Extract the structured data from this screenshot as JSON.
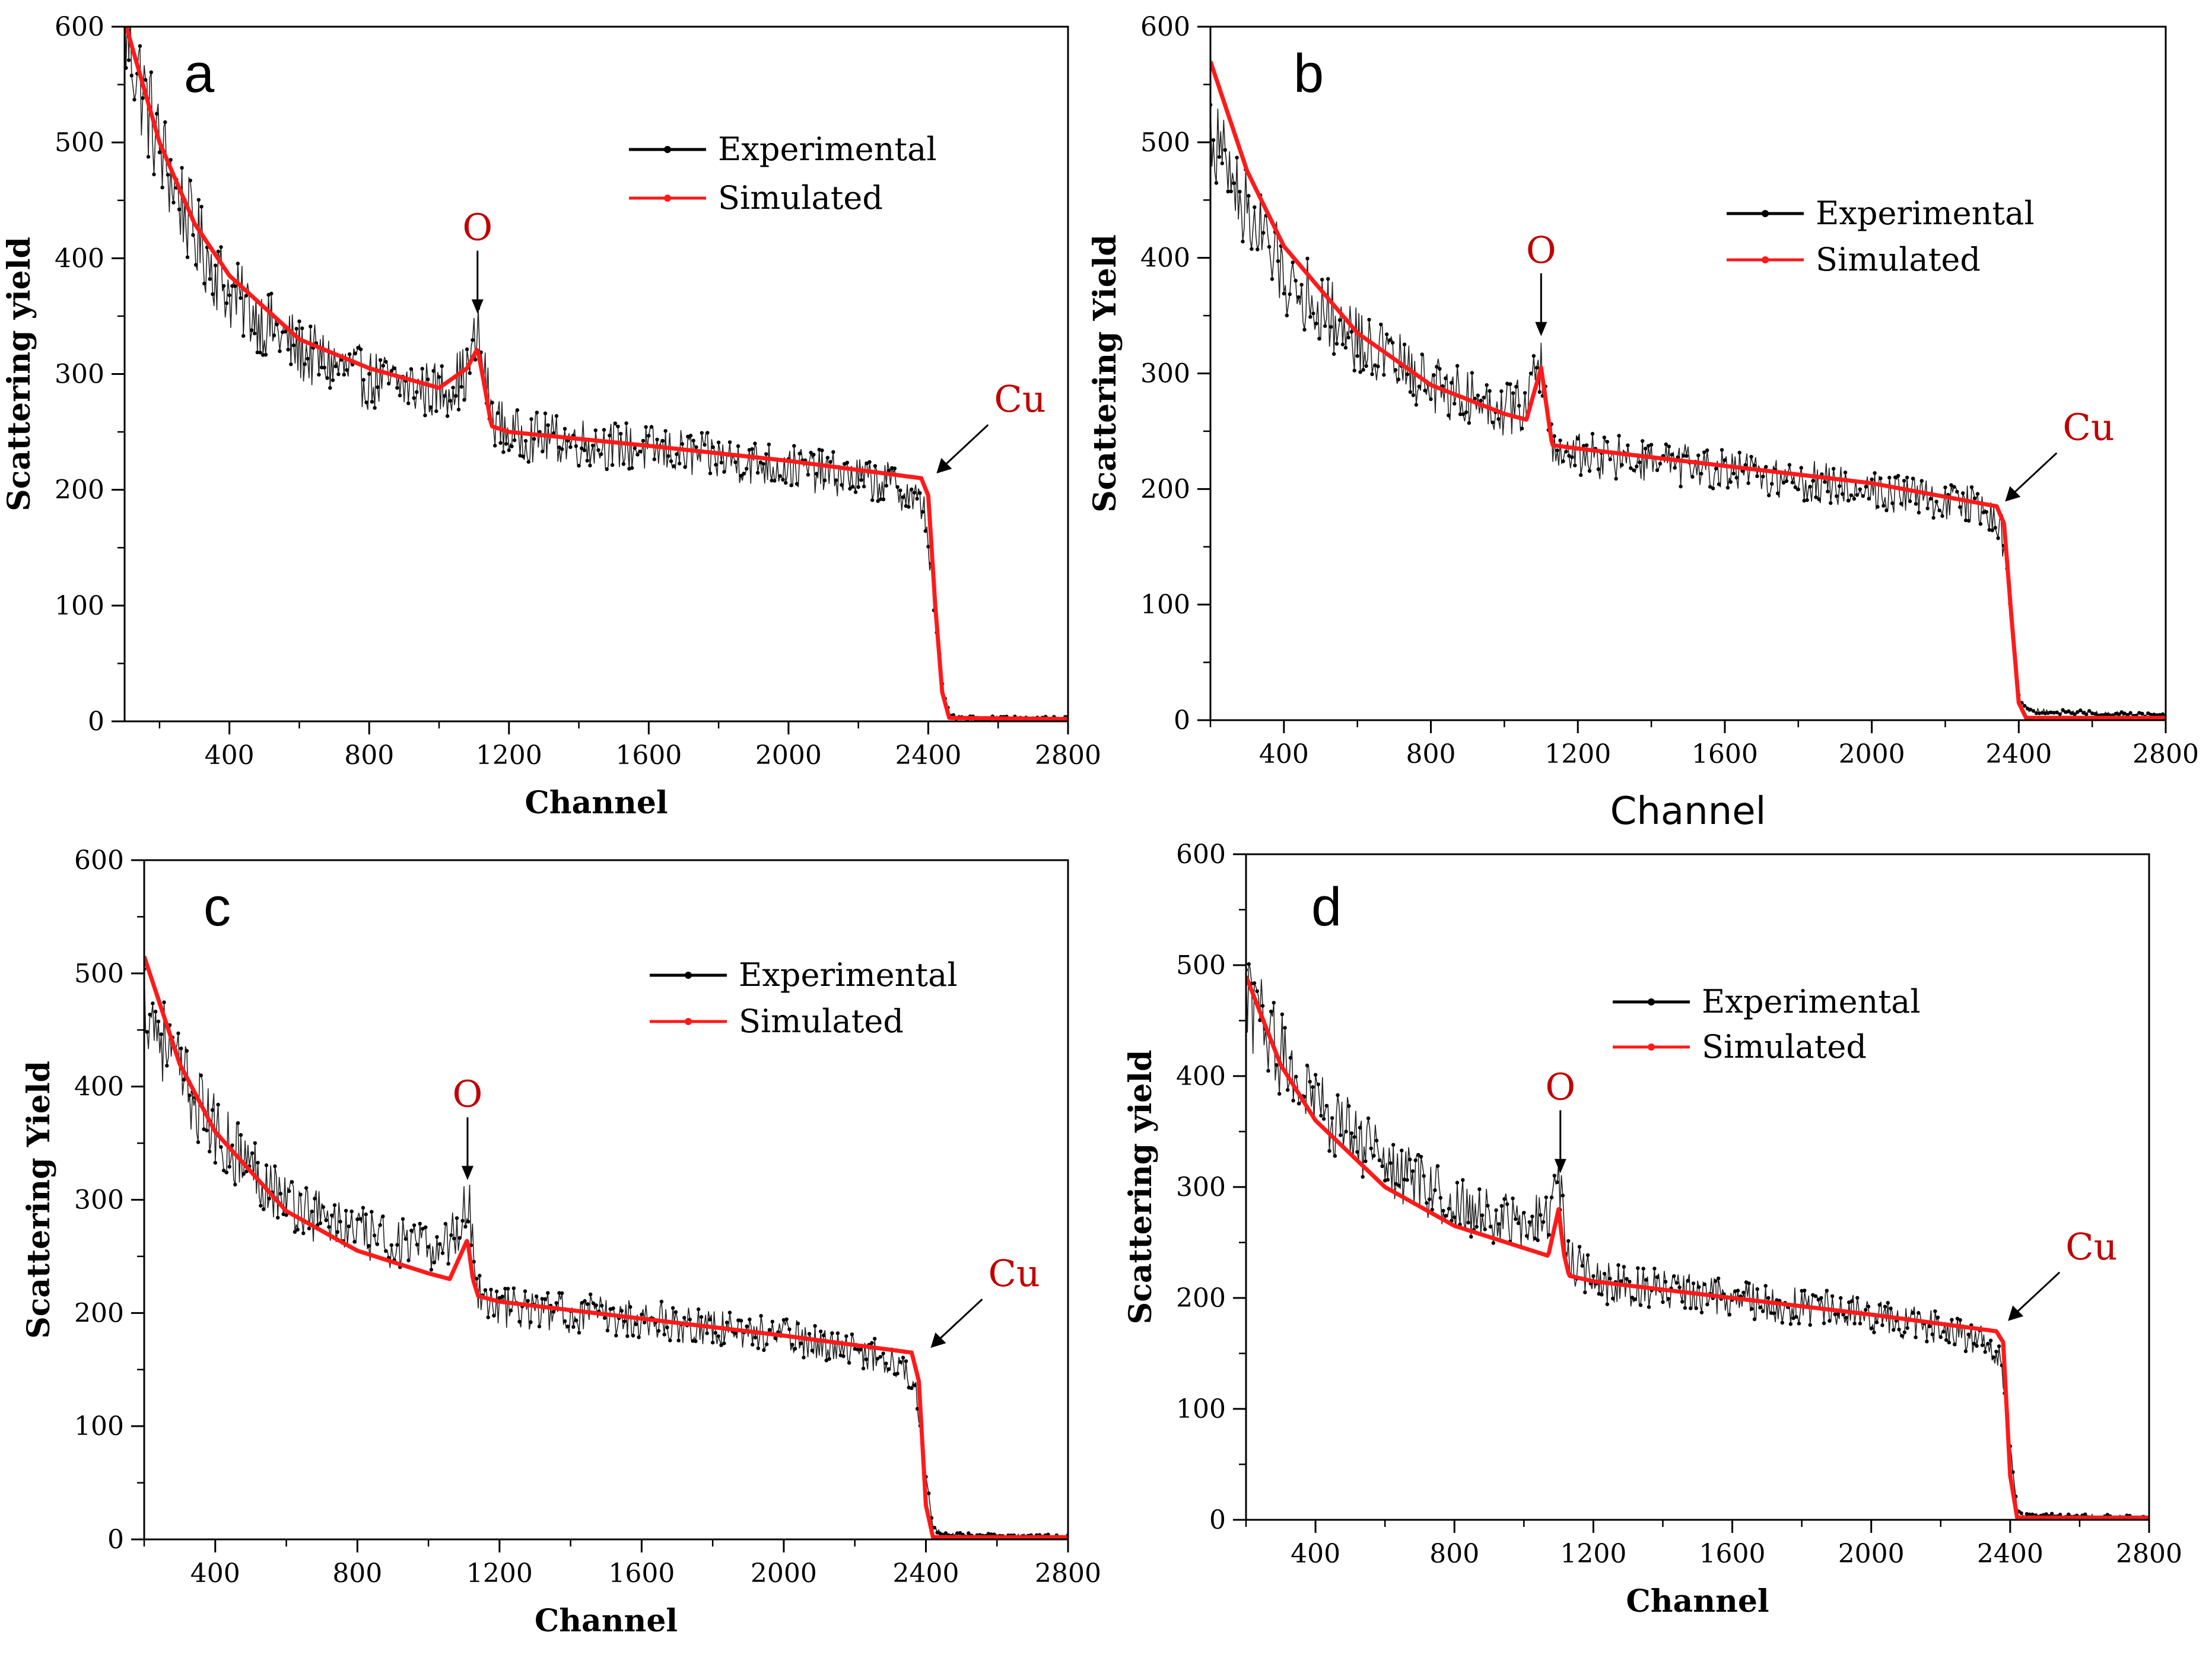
{
  "colors": {
    "experimental": "#000000",
    "simulated": "#ff1a1a",
    "annotation_text": "#c00000",
    "axes": "#000000"
  },
  "chart_data": [
    {
      "type": "scatter",
      "panel": "a",
      "xlabel": "Channel",
      "ylabel": "Scattering yield",
      "xlim": [
        100,
        2800
      ],
      "ylim": [
        0,
        600
      ],
      "xticks": [
        400,
        800,
        1200,
        1600,
        2000,
        2400,
        2800
      ],
      "yticks": [
        0,
        100,
        200,
        300,
        400,
        500,
        600
      ],
      "legend": {
        "placement": "upper-right",
        "entries": [
          "Experimental",
          "Simulated"
        ]
      },
      "annotations": [
        {
          "text": "O",
          "x": 1110,
          "y": 345
        },
        {
          "text": "Cu",
          "x": 2410,
          "y": 210
        }
      ],
      "series": [
        {
          "name": "Experimental",
          "x": [
            100,
            200,
            300,
            400,
            600,
            800,
            1000,
            1080,
            1110,
            1150,
            1200,
            1600,
            2000,
            2300,
            2390,
            2410,
            2440,
            2460,
            2500,
            2800
          ],
          "y": [
            600,
            495,
            420,
            370,
            320,
            295,
            285,
            300,
            335,
            265,
            248,
            235,
            220,
            205,
            185,
            120,
            30,
            5,
            3,
            2
          ]
        },
        {
          "name": "Simulated",
          "x": [
            100,
            200,
            300,
            400,
            600,
            800,
            1000,
            1080,
            1110,
            1130,
            1150,
            1200,
            1600,
            2000,
            2380,
            2400,
            2420,
            2440,
            2460,
            2800
          ],
          "y": [
            605,
            500,
            430,
            385,
            330,
            305,
            288,
            305,
            322,
            290,
            255,
            250,
            238,
            225,
            210,
            195,
            100,
            25,
            3,
            2
          ]
        }
      ]
    },
    {
      "type": "scatter",
      "panel": "b",
      "xlabel": "Channel",
      "ylabel": "Scattering Yield",
      "xlim": [
        200,
        2800
      ],
      "ylim": [
        0,
        600
      ],
      "xticks": [
        400,
        800,
        1200,
        1600,
        2000,
        2400,
        2800
      ],
      "yticks": [
        0,
        100,
        200,
        300,
        400,
        500,
        600
      ],
      "legend": {
        "placement": "upper-right",
        "entries": [
          "Experimental",
          "Simulated"
        ]
      },
      "annotations": [
        {
          "text": "O",
          "x": 1100,
          "y": 325
        },
        {
          "text": "Cu",
          "x": 2350,
          "y": 185
        }
      ],
      "series": [
        {
          "name": "Experimental",
          "x": [
            200,
            300,
            400,
            600,
            800,
            1000,
            1060,
            1100,
            1130,
            1200,
            1600,
            2000,
            2300,
            2350,
            2380,
            2400,
            2430,
            2800
          ],
          "y": [
            510,
            440,
            385,
            330,
            290,
            270,
            275,
            310,
            235,
            230,
            215,
            200,
            185,
            170,
            90,
            20,
            8,
            4
          ]
        },
        {
          "name": "Simulated",
          "x": [
            200,
            300,
            400,
            600,
            800,
            1000,
            1060,
            1100,
            1120,
            1130,
            1200,
            1600,
            2000,
            2340,
            2360,
            2380,
            2400,
            2420,
            2800
          ],
          "y": [
            570,
            475,
            410,
            335,
            290,
            265,
            260,
            305,
            260,
            238,
            235,
            220,
            205,
            185,
            170,
            90,
            15,
            2,
            2
          ]
        }
      ]
    },
    {
      "type": "scatter",
      "panel": "c",
      "xlabel": "Channel",
      "ylabel": "Scattering Yield",
      "xlim": [
        200,
        2800
      ],
      "ylim": [
        0,
        600
      ],
      "xticks": [
        400,
        800,
        1200,
        1600,
        2000,
        2400,
        2800
      ],
      "yticks": [
        0,
        100,
        200,
        300,
        400,
        500,
        600
      ],
      "legend": {
        "placement": "upper-right",
        "entries": [
          "Experimental",
          "Simulated"
        ]
      },
      "annotations": [
        {
          "text": "O",
          "x": 1110,
          "y": 310
        },
        {
          "text": "Cu",
          "x": 2400,
          "y": 165
        }
      ],
      "series": [
        {
          "name": "Experimental",
          "x": [
            200,
            300,
            400,
            600,
            800,
            1000,
            1080,
            1110,
            1140,
            1200,
            1600,
            2000,
            2300,
            2370,
            2400,
            2420,
            2450,
            2800
          ],
          "y": [
            480,
            410,
            360,
            300,
            270,
            255,
            270,
            305,
            220,
            205,
            195,
            180,
            160,
            140,
            60,
            10,
            4,
            2
          ]
        },
        {
          "name": "Simulated",
          "x": [
            200,
            300,
            400,
            600,
            800,
            1000,
            1060,
            1110,
            1125,
            1140,
            1200,
            1600,
            2000,
            2360,
            2380,
            2400,
            2420,
            2800
          ],
          "y": [
            515,
            420,
            360,
            290,
            255,
            235,
            230,
            265,
            230,
            215,
            210,
            195,
            180,
            165,
            140,
            30,
            2,
            2
          ]
        }
      ]
    },
    {
      "type": "scatter",
      "panel": "d",
      "xlabel": "Channel",
      "ylabel": "Scattering yield",
      "xlim": [
        200,
        2800
      ],
      "ylim": [
        0,
        600
      ],
      "xticks": [
        400,
        800,
        1200,
        1600,
        2000,
        2400,
        2800
      ],
      "yticks": [
        0,
        100,
        200,
        300,
        400,
        500,
        600
      ],
      "legend": {
        "placement": "upper-right",
        "entries": [
          "Experimental",
          "Simulated"
        ]
      },
      "annotations": [
        {
          "text": "O",
          "x": 1105,
          "y": 305
        },
        {
          "text": "Cu",
          "x": 2380,
          "y": 175
        }
      ],
      "series": [
        {
          "name": "Experimental",
          "x": [
            200,
            300,
            400,
            600,
            800,
            1000,
            1070,
            1105,
            1130,
            1200,
            1600,
            2000,
            2300,
            2370,
            2400,
            2420,
            2440,
            2800
          ],
          "y": [
            470,
            420,
            375,
            320,
            285,
            265,
            275,
            305,
            235,
            215,
            200,
            185,
            165,
            150,
            70,
            10,
            4,
            2
          ]
        },
        {
          "name": "Simulated",
          "x": [
            200,
            300,
            400,
            600,
            800,
            1000,
            1070,
            1100,
            1115,
            1130,
            1200,
            1600,
            2000,
            2360,
            2380,
            2400,
            2420,
            2800
          ],
          "y": [
            490,
            410,
            360,
            300,
            265,
            245,
            238,
            280,
            240,
            220,
            215,
            200,
            185,
            170,
            160,
            40,
            2,
            2
          ]
        }
      ]
    }
  ]
}
